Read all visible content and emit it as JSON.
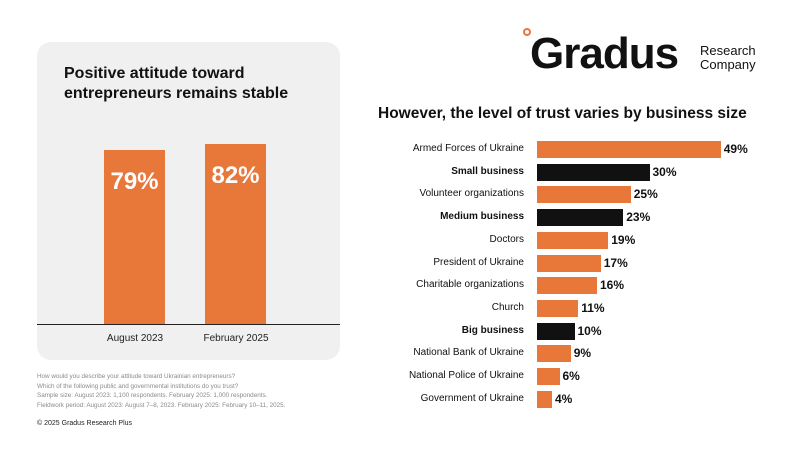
{
  "logo": {
    "brand": "Gradus",
    "sub": "Research\nCompany",
    "accent": "#e8773a"
  },
  "left": {
    "title": "Positive attitude toward\nentrepreneurs remains stable"
  },
  "right": {
    "title": "However, the level of trust varies by business size"
  },
  "chart_data": [
    {
      "type": "bar",
      "title": "Positive attitude toward entrepreneurs remains stable",
      "categories": [
        "August 2023",
        "February 2025"
      ],
      "values": [
        79,
        82
      ],
      "value_labels": [
        "79%",
        "82%"
      ],
      "ylim": [
        0,
        100
      ],
      "color": "#e8773a"
    },
    {
      "type": "bar",
      "orientation": "horizontal",
      "title": "However, the level of trust varies by business size",
      "categories": [
        "Armed Forces of Ukraine",
        "Small business",
        "Volunteer organizations",
        "Medium business",
        "Doctors",
        "President of Ukraine",
        "Charitable organizations",
        "Church",
        "Big business",
        "National Bank of Ukraine",
        "National Police of Ukraine",
        "Government of Ukraine"
      ],
      "values": [
        49,
        30,
        25,
        23,
        19,
        17,
        16,
        11,
        10,
        9,
        6,
        4
      ],
      "value_labels": [
        "49%",
        "30%",
        "25%",
        "23%",
        "19%",
        "17%",
        "16%",
        "11%",
        "10%",
        "9%",
        "6%",
        "4%"
      ],
      "highlight": [
        false,
        true,
        false,
        true,
        false,
        false,
        false,
        false,
        true,
        false,
        false,
        false
      ],
      "colors": {
        "default": "#e8773a",
        "highlight": "#111111"
      }
    }
  ],
  "footnote": {
    "lines": [
      "How would you describe your attitude toward Ukrainian entrepreneurs?",
      "Which of the following public and governmental institutions do you trust?",
      "Sample size: August 2023: 1,100 respondents. February 2025: 1,000 respondents.",
      "Fieldwork period: August 2023: August 7–8, 2023. February 2025: February 10–11, 2025."
    ]
  },
  "copyright": "© 2025 Gradus Research Plus"
}
